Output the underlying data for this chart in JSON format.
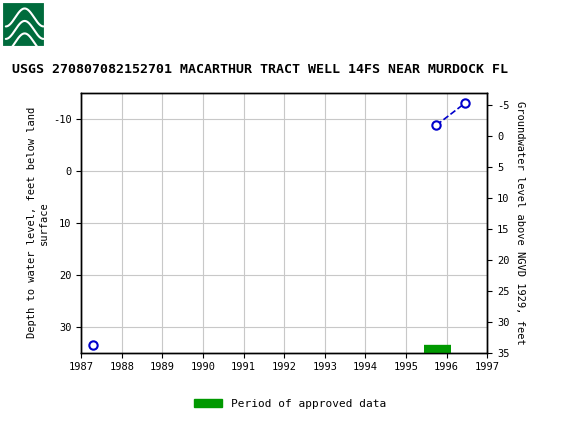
{
  "title": "USGS 270807082152701 MACARTHUR TRACT WELL 14FS NEAR MURDOCK FL",
  "usgs_header_color": "#006B3C",
  "left_ylabel": "Depth to water level, feet below land\nsurface",
  "right_ylabel": "Groundwater level above NGVD 1929, feet",
  "xlim": [
    1987,
    1997
  ],
  "xticks": [
    1987,
    1988,
    1989,
    1990,
    1991,
    1992,
    1993,
    1994,
    1995,
    1996,
    1997
  ],
  "ylim_left": [
    35,
    -15
  ],
  "yticks_left": [
    -10,
    0,
    10,
    20,
    30
  ],
  "ylim_right": [
    35,
    -7
  ],
  "yticks_right": [
    35,
    30,
    25,
    20,
    15,
    10,
    5,
    0,
    -5
  ],
  "data_x": [
    1987.3,
    1995.75,
    1996.45
  ],
  "data_y": [
    33.5,
    -8.8,
    -13.0
  ],
  "line_color": "#0000CC",
  "marker_color": "#0000CC",
  "marker_facecolor": "white",
  "marker_size": 6,
  "green_bar_x_start": 1995.45,
  "green_bar_x_end": 1996.1,
  "green_bar_y": 34.3,
  "green_bar_color": "#009900",
  "legend_label": "Period of approved data",
  "background_color": "#ffffff",
  "plot_bg_color": "#ffffff",
  "grid_color": "#c8c8c8",
  "title_fontsize": 9.5,
  "tick_fontsize": 7.5,
  "ylabel_fontsize": 7.5
}
